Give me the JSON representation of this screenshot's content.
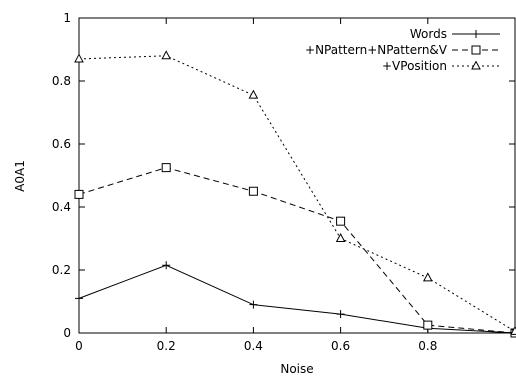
{
  "chart_data": {
    "type": "line",
    "title": "",
    "xlabel": "Noise",
    "ylabel": "A0A1",
    "xlim": [
      0,
      1
    ],
    "ylim": [
      0,
      1
    ],
    "x_ticks": [
      "0",
      "0.2",
      "0.4",
      "0.6",
      "0.8"
    ],
    "y_ticks": [
      "0",
      "0.2",
      "0.4",
      "0.6",
      "0.8",
      "1"
    ],
    "grid": false,
    "legend_position": "top-right",
    "x": [
      0,
      0.2,
      0.4,
      0.6,
      0.8,
      1.0
    ],
    "series": [
      {
        "name": "Words",
        "marker": "plus",
        "line": "solid",
        "values": [
          0.11,
          0.215,
          0.09,
          0.06,
          0.015,
          0.0
        ]
      },
      {
        "name": "+NPattern+NPattern&V",
        "marker": "square",
        "line": "dashed",
        "values": [
          0.44,
          0.525,
          0.45,
          0.355,
          0.025,
          0.0
        ]
      },
      {
        "name": "+VPosition",
        "marker": "triangle",
        "line": "dotted",
        "values": [
          0.87,
          0.88,
          0.755,
          0.3,
          0.175,
          0.005
        ]
      }
    ]
  }
}
